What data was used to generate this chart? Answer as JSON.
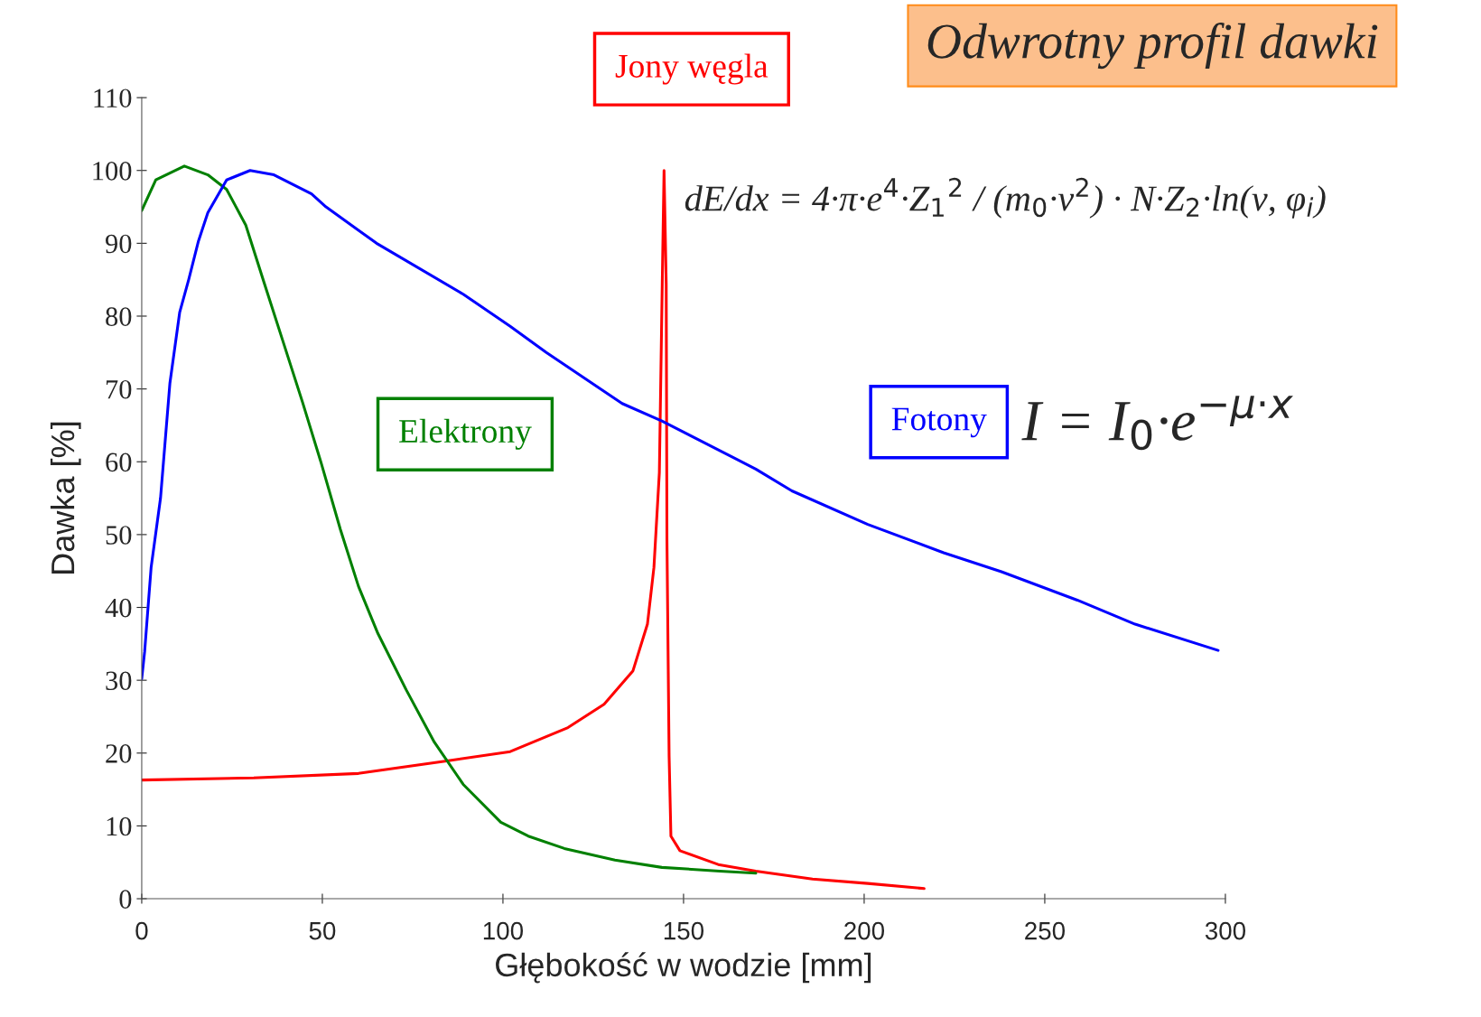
{
  "chart_data": {
    "type": "line",
    "title": "Odwrotny profil dawki",
    "xlabel": "Głębokość w wodzie [mm]",
    "ylabel": "Dawka [%]",
    "xlim": [
      0,
      300
    ],
    "xticks": [
      0,
      50,
      100,
      150,
      200,
      250,
      300
    ],
    "ylim": [
      0,
      110
    ],
    "yticks": [
      0,
      10,
      20,
      30,
      40,
      50,
      60,
      70,
      80,
      90,
      100,
      110
    ],
    "grid": false,
    "legend": false,
    "annotations": [
      "dE/dx = 4·π·e$^{4}$·Z$_{1}$$^{2}$ / (m$_{0}$·v$^{2}$) · N·Z$_{2}$·ln(v, φ$_{i}$)",
      "I = I$_{0}$·e$^{−μ·x}$"
    ],
    "series": [
      {
        "name": "Jony węgla",
        "color": "#ff0000",
        "x": [
          0,
          31,
          60,
          84,
          102,
          118,
          128,
          136,
          140,
          141.8,
          143.3,
          144.1,
          144.6,
          145.2,
          145.4,
          146,
          146.5,
          149,
          159.6,
          170,
          185.7,
          201,
          216.6
        ],
        "values": [
          16.3,
          16.6,
          17.2,
          18.9,
          20.2,
          23.5,
          26.7,
          31.3,
          37.7,
          45.5,
          58.5,
          84.4,
          100,
          84.4,
          49.4,
          19.6,
          8.6,
          6.6,
          4.7,
          3.8,
          2.7,
          2.1,
          1.4
        ]
      },
      {
        "name": "Elektrony",
        "color": "#008000",
        "x": [
          0,
          3.9,
          11.8,
          18.3,
          23.5,
          28.8,
          34,
          39,
          44.5,
          49.7,
          55,
          60,
          65.4,
          73.2,
          81,
          89,
          99.4,
          107,
          117,
          131,
          144,
          160,
          170
        ],
        "values": [
          94.5,
          98.7,
          100.6,
          99.4,
          97.4,
          92.5,
          84.4,
          76.7,
          68.2,
          59.8,
          50.7,
          42.9,
          36.4,
          28.7,
          21.5,
          15.7,
          10.5,
          8.6,
          6.9,
          5.3,
          4.3,
          3.8,
          3.5
        ]
      },
      {
        "name": "Fotony",
        "color": "#0000ff",
        "x": [
          0,
          0.8,
          2.6,
          5.2,
          7.8,
          10.5,
          13,
          15.7,
          18.3,
          23.5,
          30,
          36.6,
          47,
          51,
          65,
          89,
          102,
          112,
          133,
          144,
          170,
          180,
          201,
          222,
          238,
          259,
          275,
          298
        ],
        "values": [
          30.2,
          33.9,
          45.5,
          55,
          70.8,
          80.5,
          85,
          90.3,
          94.2,
          98.7,
          100,
          99.4,
          96.8,
          95,
          90,
          83,
          78.6,
          75,
          68,
          65.6,
          59,
          56,
          51.4,
          47.5,
          44.9,
          41,
          37.7,
          34.1
        ]
      }
    ]
  }
}
